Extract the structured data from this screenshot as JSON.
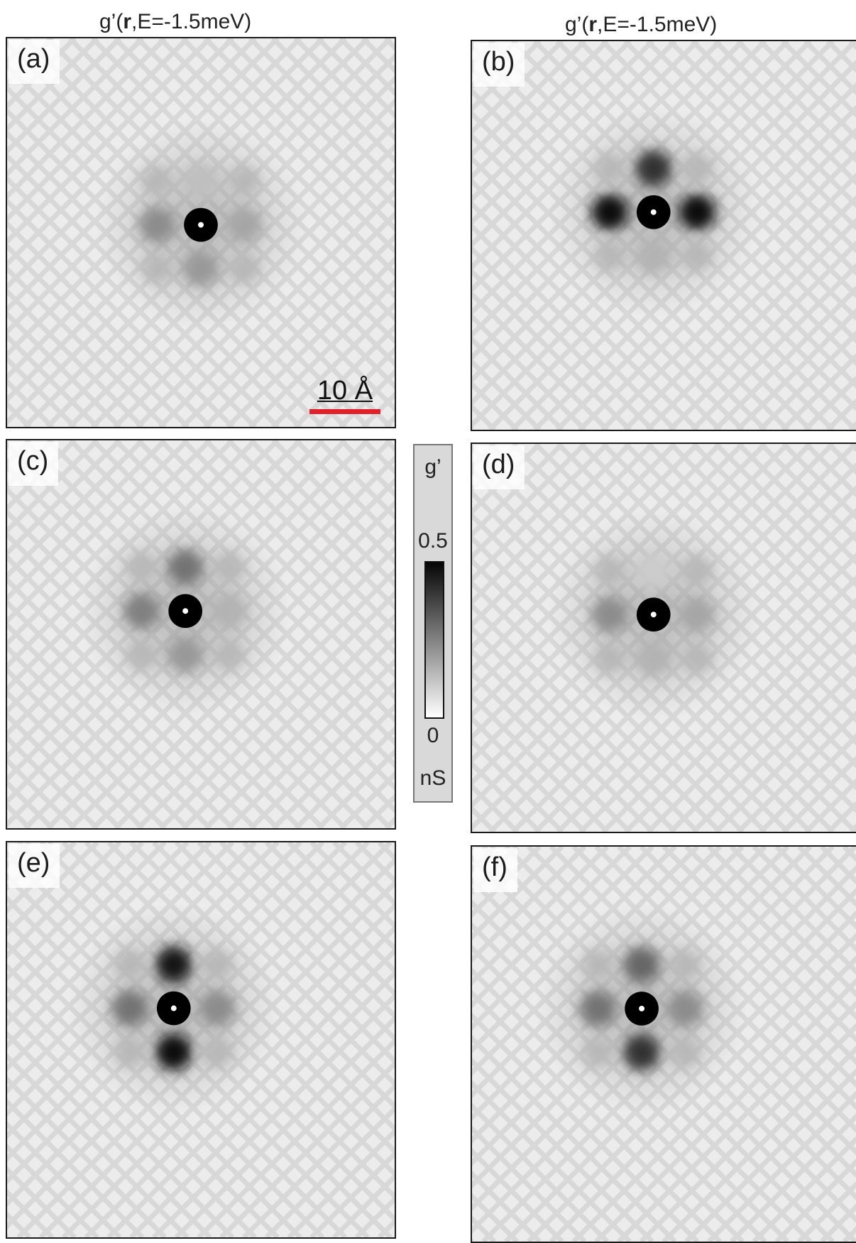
{
  "column_titles": {
    "left": "g’(r,E=-1.5meV)",
    "right": "g’(r,E=-1.5meV)",
    "prefix": "g’(",
    "bold": "r",
    "suffix": ",E=-1.5meV)"
  },
  "panels": [
    {
      "id": "a",
      "label": "(a)",
      "center_intensity": 1.0,
      "neighbor_intensity": [
        0.45,
        0.25,
        0.35,
        0.4
      ]
    },
    {
      "id": "b",
      "label": "(b)",
      "center_intensity": 1.0,
      "neighbor_intensity": [
        0.95,
        0.8,
        0.95,
        0.3
      ]
    },
    {
      "id": "c",
      "label": "(c)",
      "center_intensity": 1.0,
      "neighbor_intensity": [
        0.5,
        0.55,
        0.3,
        0.4
      ]
    },
    {
      "id": "d",
      "label": "(d)",
      "center_intensity": 1.0,
      "neighbor_intensity": [
        0.45,
        0.2,
        0.35,
        0.3
      ]
    },
    {
      "id": "e",
      "label": "(e)",
      "center_intensity": 1.0,
      "neighbor_intensity": [
        0.55,
        0.9,
        0.45,
        0.95
      ]
    },
    {
      "id": "f",
      "label": "(f)",
      "center_intensity": 1.0,
      "neighbor_intensity": [
        0.55,
        0.6,
        0.45,
        0.8
      ]
    }
  ],
  "scalebar": {
    "label": "10 Å",
    "color": "#e0202a"
  },
  "colorbar": {
    "title": "g’",
    "max_label": "0.5",
    "min_label": "0",
    "unit": "nS"
  },
  "colors": {
    "map_background": "#ececec",
    "dark": "#000000"
  }
}
